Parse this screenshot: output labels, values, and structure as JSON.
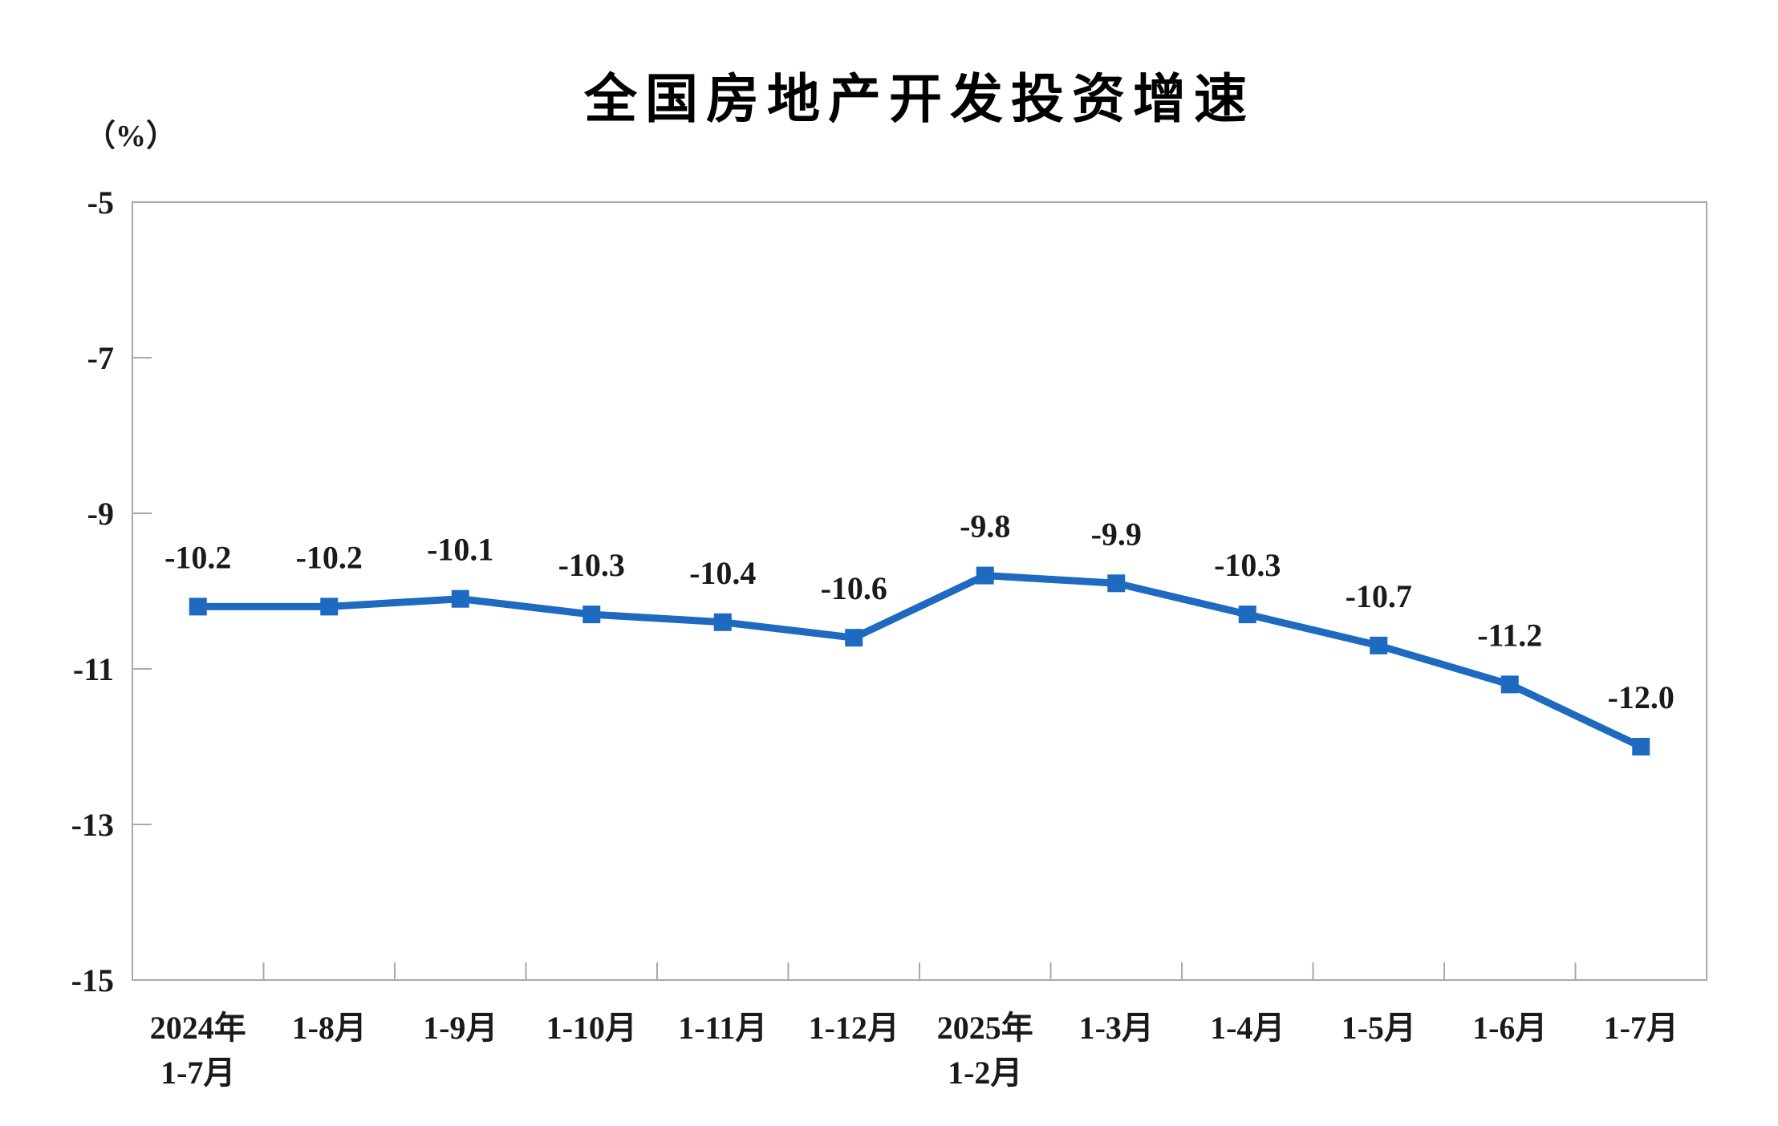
{
  "page": {
    "background": "#FFFFFF"
  },
  "chart_data": {
    "type": "line",
    "title": "全国房地产开发投资增速",
    "ylabel": "（%）",
    "xlabel": "",
    "categories": [
      "2024年\n1-7月",
      "1-8月",
      "1-9月",
      "1-10月",
      "1-11月",
      "1-12月",
      "2025年\n1-2月",
      "1-3月",
      "1-4月",
      "1-5月",
      "1-6月",
      "1-7月"
    ],
    "series": [
      {
        "name": "全国房地产开发投资增速",
        "values": [
          -10.2,
          -10.2,
          -10.1,
          -10.3,
          -10.4,
          -10.6,
          -9.8,
          -9.9,
          -10.3,
          -10.7,
          -11.2,
          -12.0
        ]
      }
    ],
    "data_labels": [
      "-10.2",
      "-10.2",
      "-10.1",
      "-10.3",
      "-10.4",
      "-10.6",
      "-9.8",
      "-9.9",
      "-10.3",
      "-10.7",
      "-11.2",
      "-12.0"
    ],
    "ytick_labels": [
      "-5",
      "-7",
      "-9",
      "-11",
      "-13",
      "-15"
    ],
    "yticks": [
      -5,
      -7,
      -9,
      -11,
      -13,
      -15
    ],
    "ylim": [
      -15,
      -5
    ],
    "grid": false,
    "legend": "none",
    "marker": "square",
    "plot_border": true,
    "colors": {
      "line": "#1E6AC0",
      "axis": "#A9A9A9",
      "text": "#1A1A1A",
      "title": "#000000"
    }
  }
}
